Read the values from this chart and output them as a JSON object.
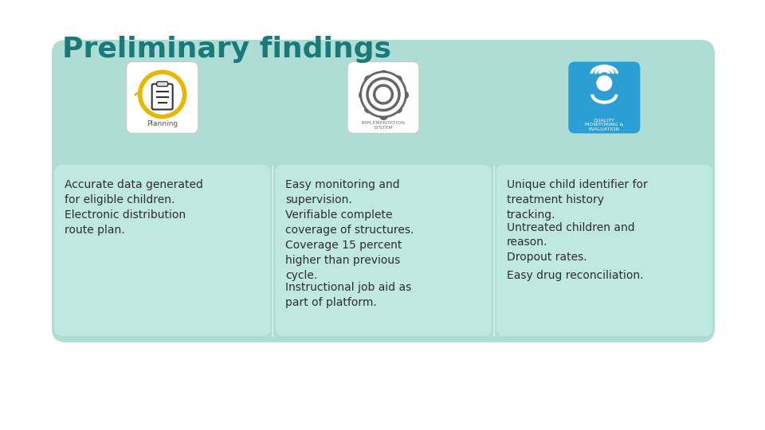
{
  "title": "Preliminary findings",
  "title_color": "#1a7a7a",
  "title_fontsize": 26,
  "background_color": "#ffffff",
  "outer_box_color": "#aeddd6",
  "inner_card_color": "#c0e8e2",
  "divider_color": "#d0eeea",
  "text_color": "#2d2d2d",
  "text_fontsize": 10,
  "icon_box_colors": [
    "#ffffff",
    "#ffffff",
    "#2b9fd4"
  ],
  "icon_box_border": [
    "#e0e0e0",
    "#e0e0e0",
    "#2b9fd4"
  ],
  "columns": [
    {
      "bullet_points": [
        "Accurate data generated\nfor eligible children.",
        "Electronic distribution\nroute plan."
      ]
    },
    {
      "bullet_points": [
        "Easy monitoring and\nsupervision.",
        "Verifiable complete\ncoverage of structures.",
        "Coverage 15 percent\nhigher than previous\ncycle.",
        "Instructional job aid as\npart of platform."
      ]
    },
    {
      "bullet_points": [
        "Unique child identifier for\ntreatment history\ntracking.",
        "Untreated children and\nreason.",
        "Dropout rates.",
        "Easy drug reconciliation."
      ]
    }
  ]
}
